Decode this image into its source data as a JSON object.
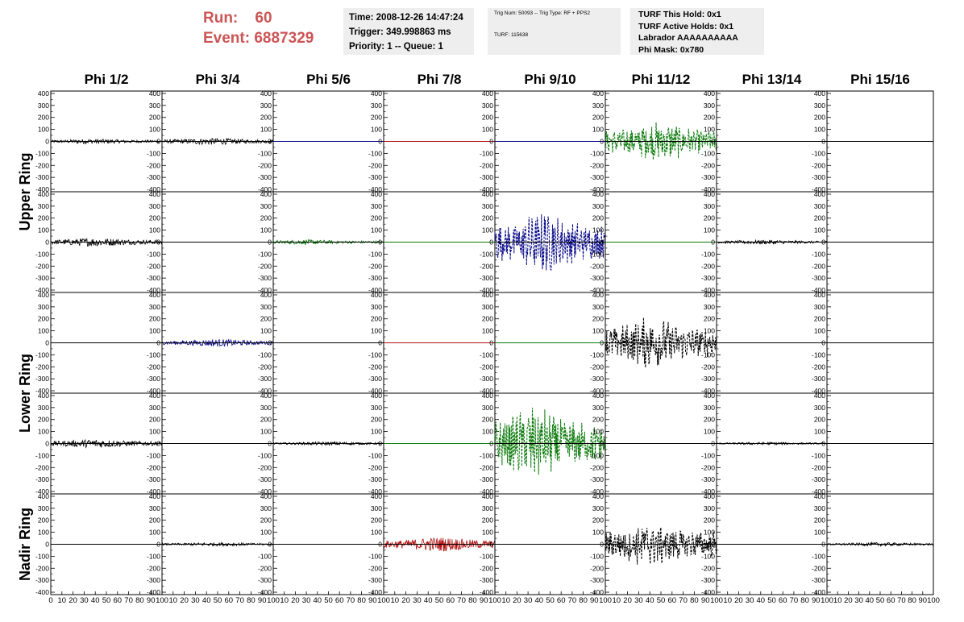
{
  "run": {
    "label": "Run:",
    "value": "60"
  },
  "event": {
    "label": "Event:",
    "value": "6887329"
  },
  "time_box": {
    "time": "Time: 2008-12-26 14:47:24",
    "trigger": "Trigger: 349.998863 ms",
    "priority": "Priority: 1 -- Queue: 1"
  },
  "trig_box": {
    "line1": "Trig Num: 50093 -- Trig Type: RF + PPS2",
    "line2": "TURF: 115638"
  },
  "turf_box": {
    "hold": "TURF This Hold: 0x1",
    "active": "TURF Active Holds: 0x1",
    "labrador": "Labrador AAAAAAAAAA",
    "phimask": "Phi Mask: 0x780"
  },
  "colors": {
    "black": "#000000",
    "green": "#0a7a0a",
    "blue": "#0a0a8a",
    "red": "#b01010",
    "run_text": "#cc5555",
    "box_bg": "#eeeeee"
  },
  "chart_data": {
    "type": "line",
    "columns": [
      "Phi 1/2",
      "Phi 3/4",
      "Phi 5/6",
      "Phi 7/8",
      "Phi 9/10",
      "Phi 11/12",
      "Phi 13/14",
      "Phi 15/16"
    ],
    "ring_labels": [
      {
        "text": "Upper Ring",
        "rows": [
          0,
          1
        ]
      },
      {
        "text": "Lower Ring",
        "rows": [
          2,
          3
        ]
      },
      {
        "text": "Nadir Ring",
        "rows": [
          4
        ]
      }
    ],
    "ylim": [
      -420,
      420
    ],
    "yticks": [
      -400,
      -300,
      -200,
      -100,
      0,
      100,
      200,
      300,
      400
    ],
    "xlim": [
      0,
      100
    ],
    "xticks": [
      0,
      10,
      20,
      30,
      40,
      50,
      60,
      70,
      80,
      90,
      100
    ],
    "grid": false,
    "panels": [
      [
        {
          "color": "black",
          "amp": 20,
          "style": "solid",
          "peak": 40
        },
        {
          "color": "black",
          "amp": 28,
          "style": "solid",
          "peak": 45
        },
        {
          "color": "blue",
          "amp": 0,
          "style": "solid",
          "peak": 50
        },
        {
          "color": "red",
          "amp": 0,
          "style": "solid",
          "peak": 50
        },
        {
          "color": "blue",
          "amp": 0,
          "style": "solid",
          "peak": 50
        },
        {
          "color": "green",
          "amp": 140,
          "style": "dashed",
          "peak": 50
        },
        {
          "color": "black",
          "amp": 0,
          "style": "solid",
          "peak": 50
        },
        {
          "color": "black",
          "amp": 0,
          "style": "solid",
          "peak": 50
        }
      ],
      [
        {
          "color": "black",
          "amp": 35,
          "style": "solid",
          "peak": 40
        },
        {
          "color": "black",
          "amp": 0,
          "style": "solid",
          "peak": 50
        },
        {
          "color": "green",
          "amp": 20,
          "style": "solid",
          "peak": 30
        },
        {
          "color": "green",
          "amp": 0,
          "style": "solid",
          "peak": 50
        },
        {
          "color": "blue",
          "amp": 220,
          "style": "dashed",
          "peak": 45
        },
        {
          "color": "green",
          "amp": 0,
          "style": "solid",
          "peak": 50
        },
        {
          "color": "black",
          "amp": 18,
          "style": "solid",
          "peak": 45
        },
        {
          "color": "black",
          "amp": 0,
          "style": "solid",
          "peak": 50
        }
      ],
      [
        {
          "color": "black",
          "amp": 0,
          "style": "solid",
          "peak": 50
        },
        {
          "color": "blue",
          "amp": 30,
          "style": "solid",
          "peak": 50
        },
        {
          "color": "black",
          "amp": 0,
          "style": "solid",
          "peak": 50
        },
        {
          "color": "red",
          "amp": 0,
          "style": "solid",
          "peak": 50
        },
        {
          "color": "green",
          "amp": 0,
          "style": "solid",
          "peak": 50
        },
        {
          "color": "black",
          "amp": 180,
          "style": "dashed",
          "peak": 40
        },
        {
          "color": "black",
          "amp": 0,
          "style": "solid",
          "peak": 50
        },
        {
          "color": "black",
          "amp": 0,
          "style": "solid",
          "peak": 50
        }
      ],
      [
        {
          "color": "black",
          "amp": 35,
          "style": "solid",
          "peak": 40
        },
        {
          "color": "black",
          "amp": 0,
          "style": "solid",
          "peak": 50
        },
        {
          "color": "black",
          "amp": 15,
          "style": "solid",
          "peak": 50
        },
        {
          "color": "green",
          "amp": 0,
          "style": "solid",
          "peak": 50
        },
        {
          "color": "green",
          "amp": 260,
          "style": "dashed",
          "peak": 35
        },
        {
          "color": "black",
          "amp": 0,
          "style": "solid",
          "peak": 50
        },
        {
          "color": "black",
          "amp": 12,
          "style": "solid",
          "peak": 45
        },
        {
          "color": "black",
          "amp": 0,
          "style": "solid",
          "peak": 50
        }
      ],
      [
        {
          "color": "black",
          "amp": 0,
          "style": "solid",
          "peak": 50
        },
        {
          "color": "black",
          "amp": 15,
          "style": "solid",
          "peak": 50
        },
        {
          "color": "black",
          "amp": 0,
          "style": "solid",
          "peak": 50
        },
        {
          "color": "red",
          "amp": 60,
          "style": "solid",
          "peak": 50
        },
        {
          "color": "black",
          "amp": 0,
          "style": "solid",
          "peak": 50
        },
        {
          "color": "black",
          "amp": 160,
          "style": "dashed",
          "peak": 40
        },
        {
          "color": "black",
          "amp": 0,
          "style": "solid",
          "peak": 50
        },
        {
          "color": "black",
          "amp": 15,
          "style": "solid",
          "peak": 50
        }
      ]
    ]
  }
}
